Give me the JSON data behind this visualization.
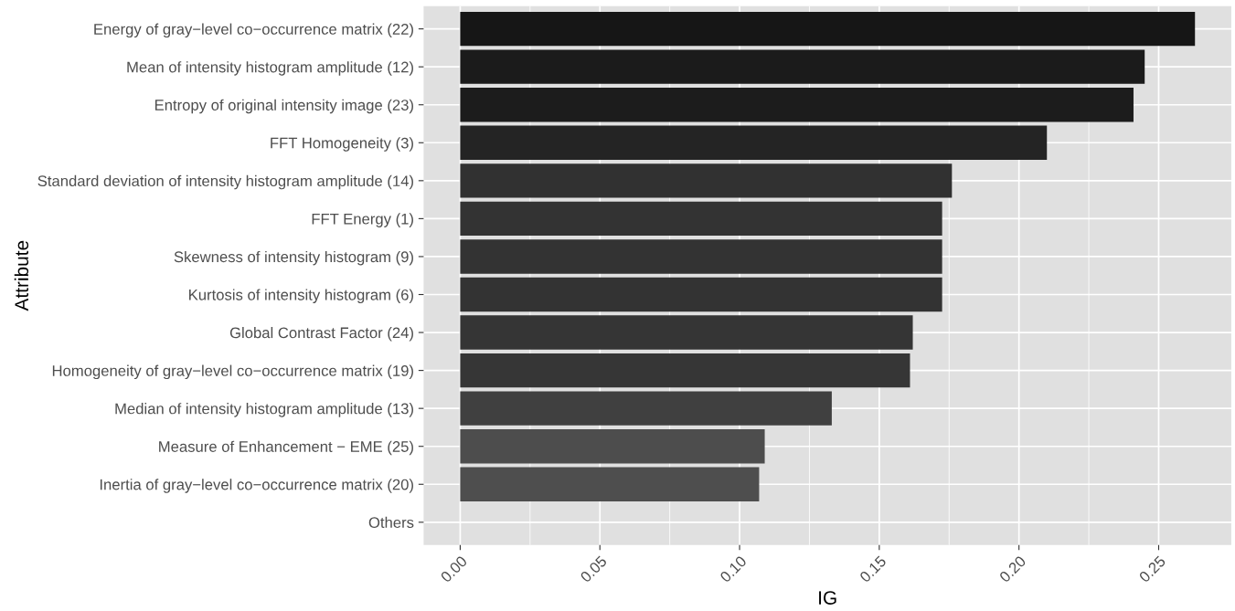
{
  "chart_data": {
    "type": "bar",
    "orientation": "horizontal",
    "xlabel": "IG",
    "ylabel": "Attribute",
    "categories": [
      "Energy of gray−level co−occurrence matrix (22)",
      "Mean of intensity histogram amplitude (12)",
      "Entropy of original intensity image (23)",
      "FFT Homogeneity (3)",
      "Standard deviation of intensity histogram amplitude (14)",
      "FFT Energy (1)",
      "Skewness of intensity histogram (9)",
      "Kurtosis of intensity histogram (6)",
      "Global Contrast Factor (24)",
      "Homogeneity of gray−level co−occurrence matrix (19)",
      "Median of intensity histogram amplitude (13)",
      "Measure of Enhancement − EME (25)",
      "Inertia of gray−level co−occurrence matrix (20)",
      "Others"
    ],
    "values": [
      0.263,
      0.245,
      0.241,
      0.21,
      0.176,
      0.1725,
      0.1725,
      0.1725,
      0.162,
      0.161,
      0.133,
      0.109,
      0.107,
      null
    ],
    "colors": [
      "#161616",
      "#1b1b1b",
      "#1c1c1c",
      "#242424",
      "#313131",
      "#333333",
      "#333333",
      "#333333",
      "#353535",
      "#363636",
      "#404040",
      "#4d4d4d",
      "#4e4e4e",
      "#555555"
    ],
    "xlim": [
      -0.0131,
      0.276
    ],
    "xticks": [
      {
        "value": 0,
        "label": "0.00"
      },
      0.05,
      {
        "value": 0.1,
        "label": "0.10"
      },
      0.15,
      {
        "value": 0.2,
        "label": "0.20"
      },
      0.25
    ],
    "grid": true
  }
}
